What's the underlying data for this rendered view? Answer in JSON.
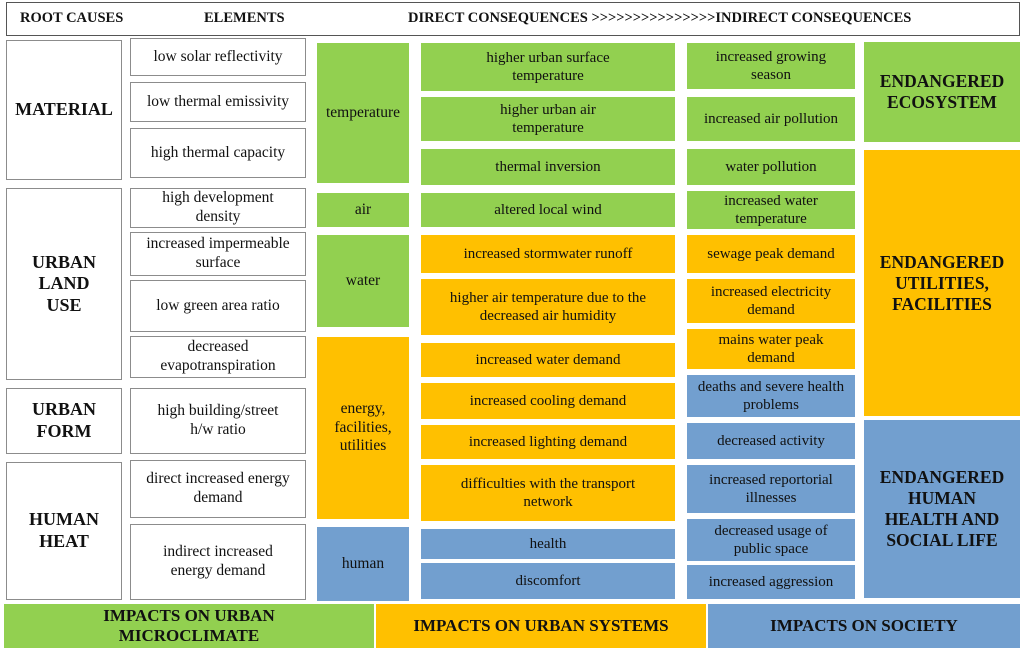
{
  "colors": {
    "green": "#92d050",
    "orange": "#ffc000",
    "blue": "#729fcf"
  },
  "header": {
    "root_causes": "ROOT CAUSES",
    "elements": "ELEMENTS",
    "consequences": "DIRECT CONSEQUENCES >>>>>>>>>>>>>>>INDIRECT CONSEQUENCES"
  },
  "root_causes": {
    "material": "MATERIAL",
    "urban_land_use": "URBAN LAND USE",
    "urban_form": "URBAN FORM",
    "human_heat": "HUMAN HEAT"
  },
  "elements": {
    "e1": "low solar reflectivity",
    "e2": "low thermal emissivity",
    "e3": "high thermal capacity",
    "e4": "high development density",
    "e5": "increased impermeable surface",
    "e6": "low green area ratio",
    "e7": "decreased evapotranspiration",
    "e8": "high building/street h/w ratio",
    "e9": "direct increased energy demand",
    "e10": "indirect increased energy demand"
  },
  "categories": {
    "temperature": "temperature",
    "air": "air",
    "water": "water",
    "energy": "energy, facilities, utilities",
    "human": "human"
  },
  "direct": {
    "d1": "higher urban surface temperature",
    "d2": "higher urban air temperature",
    "d3": "thermal inversion",
    "d4": "altered local wind",
    "d5": "increased stormwater runoff",
    "d6": "higher air temperature due to the decreased air humidity",
    "d7": "increased water demand",
    "d8": "increased cooling demand",
    "d9": "increased lighting  demand",
    "d10": "difficulties with the transport network",
    "d11": "health",
    "d12": "discomfort"
  },
  "indirect": {
    "i1": "increased growing season",
    "i2": "increased air pollution",
    "i3": "water pollution",
    "i4": "increased water temperature",
    "i5": "sewage peak demand",
    "i6": "increased electricity demand",
    "i7": "mains water peak demand",
    "i8": "deaths and severe health problems",
    "i9": "decreased activity",
    "i10": "increased reportorial illnesses",
    "i11": "decreased usage of public space",
    "i12": "increased aggression"
  },
  "endangered": {
    "ecosystem": "ENDANGERED ECOSYSTEM",
    "utilities": "ENDANGERED UTILITIES, FACILITIES",
    "health": "ENDANGERED HUMAN HEALTH AND SOCIAL LIFE"
  },
  "impacts": {
    "microclimate": "IMPACTS  ON URBAN MICROCLIMATE",
    "systems": "IMPACTS  ON URBAN SYSTEMS",
    "society": "IMPACTS  ON SOCIETY"
  }
}
